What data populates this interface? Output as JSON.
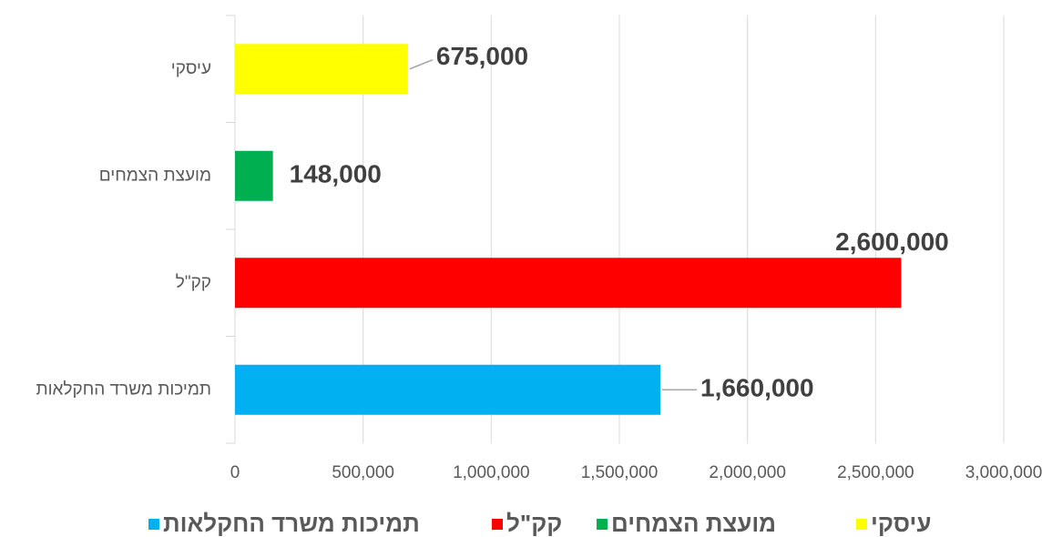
{
  "chart_data": {
    "type": "bar",
    "orientation": "horizontal",
    "categories": [
      "עיסקי",
      "מועצת הצמחים",
      "קק\"ל",
      "תמיכות משרד החקלאות"
    ],
    "values": [
      675000,
      148000,
      2600000,
      1660000
    ],
    "value_labels": [
      "675,000",
      "148,000",
      "2,600,000",
      "1,660,000"
    ],
    "colors": [
      "#ffff00",
      "#00b050",
      "#ff0000",
      "#00b0f0"
    ],
    "xlim": [
      0,
      3000000
    ],
    "xticks": [
      0,
      {
        "value": 500000,
        "label": "500,000"
      },
      {
        "value": 1000000,
        "label": "1,000,000"
      },
      {
        "value": 1500000,
        "label": "1,500,000"
      },
      {
        "value": 2000000,
        "label": "2,000,000"
      },
      {
        "value": 2500000,
        "label": "2,500,000"
      },
      {
        "value": 3000000,
        "label": "3,000,000"
      }
    ],
    "grid": true,
    "legend": "bottom"
  }
}
